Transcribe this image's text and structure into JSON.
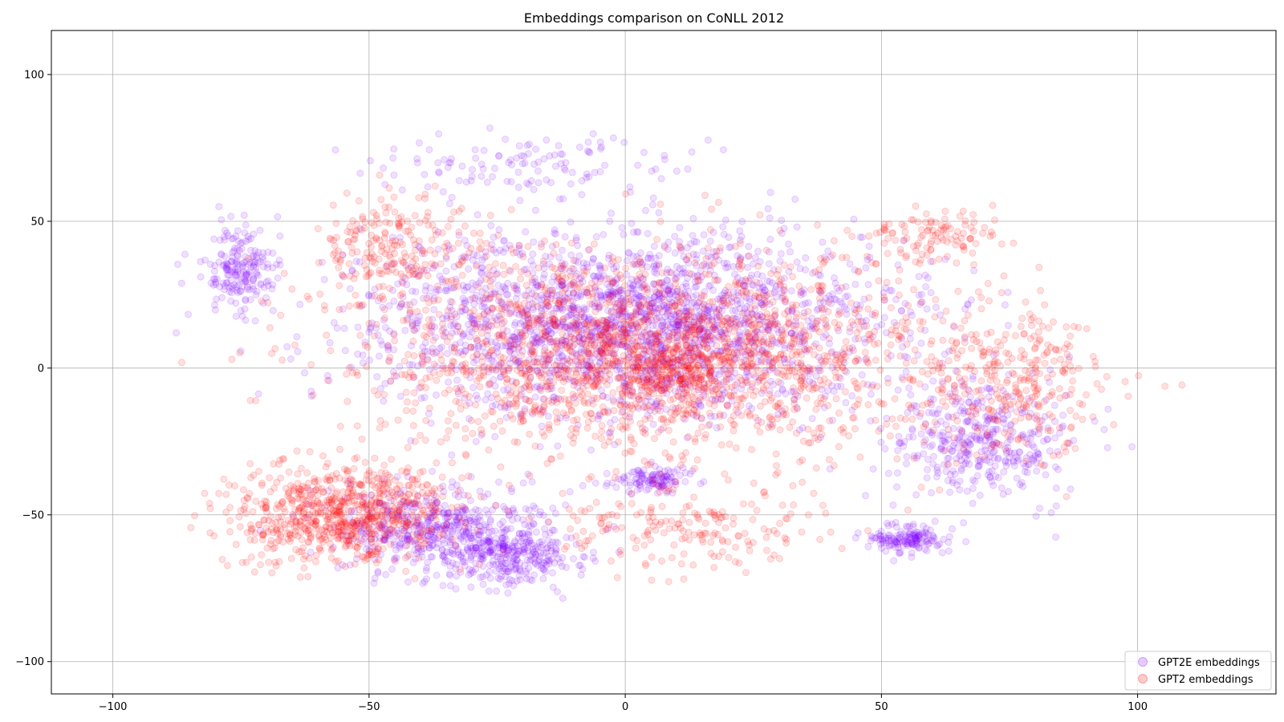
{
  "chart_data": {
    "type": "scatter",
    "title": "Embeddings comparison on CoNLL 2012",
    "xlabel": "",
    "ylabel": "",
    "xlim": [
      -112,
      127
    ],
    "ylim": [
      -111,
      115
    ],
    "xticks": [
      -100,
      -50,
      0,
      50,
      100
    ],
    "yticks": [
      -100,
      -50,
      0,
      50,
      100
    ],
    "xtick_labels": [
      "−100",
      "−50",
      "0",
      "50",
      "100"
    ],
    "ytick_labels": [
      "−100",
      "−50",
      "0",
      "50",
      "100"
    ],
    "grid": true,
    "legend_position": "lower-right",
    "marker_alpha": 0.12,
    "series": [
      {
        "name": "GPT2E embeddings",
        "color": "#8000ff",
        "point_count_shown_approx": "dense",
        "clusters": [
          {
            "center": [
              0,
              15
            ],
            "spread": [
              42,
              26
            ],
            "weight": 0.55
          },
          {
            "center": [
              -75,
              35
            ],
            "spread": [
              6,
              12
            ],
            "weight": 0.05
          },
          {
            "center": [
              -35,
              -55
            ],
            "spread": [
              18,
              12
            ],
            "weight": 0.14
          },
          {
            "center": [
              -22,
              -65
            ],
            "spread": [
              10,
              8
            ],
            "weight": 0.06
          },
          {
            "center": [
              70,
              -25
            ],
            "spread": [
              15,
              18
            ],
            "weight": 0.1
          },
          {
            "center": [
              55,
              -58
            ],
            "spread": [
              6,
              4
            ],
            "weight": 0.04
          },
          {
            "center": [
              5,
              -38
            ],
            "spread": [
              7,
              4
            ],
            "weight": 0.03
          },
          {
            "center": [
              -20,
              70
            ],
            "spread": [
              30,
              8
            ],
            "weight": 0.03
          }
        ]
      },
      {
        "name": "GPT2 embeddings",
        "color": "#ff0000",
        "point_count_shown_approx": "dense",
        "clusters": [
          {
            "center": [
              5,
              5
            ],
            "spread": [
              45,
              28
            ],
            "weight": 0.55
          },
          {
            "center": [
              -55,
              -50
            ],
            "spread": [
              17,
              14
            ],
            "weight": 0.2
          },
          {
            "center": [
              -45,
              40
            ],
            "spread": [
              15,
              15
            ],
            "weight": 0.06
          },
          {
            "center": [
              75,
              -5
            ],
            "spread": [
              15,
              22
            ],
            "weight": 0.08
          },
          {
            "center": [
              10,
              -55
            ],
            "spread": [
              25,
              12
            ],
            "weight": 0.05
          },
          {
            "center": [
              60,
              45
            ],
            "spread": [
              12,
              8
            ],
            "weight": 0.03
          },
          {
            "center": [
              10,
              0
            ],
            "spread": [
              8,
              8
            ],
            "weight": 0.03
          }
        ]
      }
    ]
  }
}
